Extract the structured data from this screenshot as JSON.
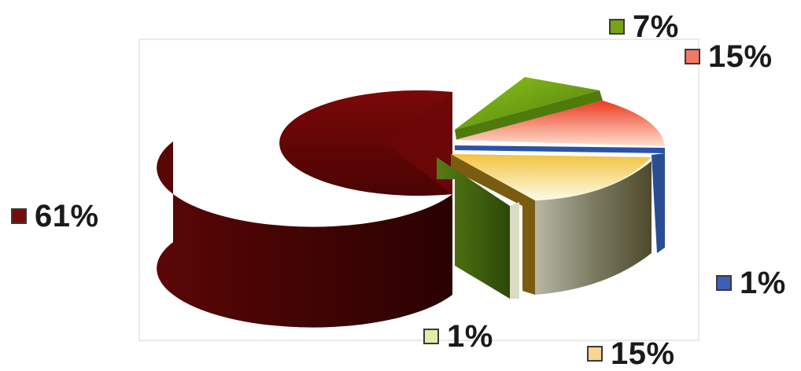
{
  "chart_data": {
    "type": "pie",
    "style": "3d-exploded",
    "values": [
      61,
      7,
      15,
      1,
      15,
      1
    ],
    "labels": [
      "61%",
      "7%",
      "15%",
      "1%",
      "15%",
      "1%"
    ],
    "colors": [
      "#7a0b0b",
      "#77a315",
      "#f07a64",
      "#3d5fb8",
      "#f6d690",
      "#dfeea8"
    ],
    "legend": "labels placed around the pie, each with a color swatch",
    "plot_area_border": true
  }
}
